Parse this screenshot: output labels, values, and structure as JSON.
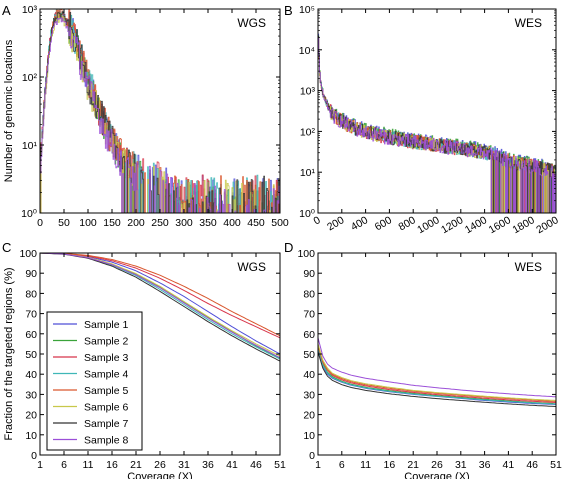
{
  "figure": {
    "colors": [
      "#4f4fd8",
      "#3aa33a",
      "#d8354a",
      "#3fb7b7",
      "#d9572e",
      "#c8c84a",
      "#333333",
      "#9b4fd8"
    ],
    "sample_names": [
      "Sample 1",
      "Sample 2",
      "Sample 3",
      "Sample 4",
      "Sample 5",
      "Sample 6",
      "Sample 7",
      "Sample 8"
    ]
  },
  "chart_data": [
    {
      "panel": "A",
      "label": "WGS",
      "type": "line",
      "ylabel": "Number of genomic locations",
      "xlim": [
        0,
        500
      ],
      "ylim": [
        1,
        1000
      ],
      "yscale": "log",
      "xticks": [
        0,
        50,
        100,
        150,
        200,
        250,
        300,
        350,
        400,
        450,
        500
      ],
      "xtick_labels": [
        "0",
        "50",
        "100",
        "150",
        "200",
        "250",
        "300",
        "350",
        "400",
        "450",
        "500"
      ],
      "yticks": [
        1,
        10,
        100,
        1000
      ],
      "ytick_labels": [
        "10⁰",
        "10¹",
        "10²",
        "10³"
      ],
      "series_shape": {
        "x": [
          0,
          5,
          10,
          15,
          20,
          25,
          30,
          35,
          40,
          45,
          50,
          60,
          70,
          80,
          90,
          100,
          120,
          140,
          160,
          180,
          200,
          250,
          300,
          350,
          400,
          450,
          500
        ],
        "y": [
          5,
          20,
          60,
          150,
          320,
          520,
          700,
          800,
          820,
          790,
          720,
          560,
          380,
          230,
          135,
          80,
          35,
          15,
          8,
          5,
          4,
          3,
          2,
          2,
          2,
          2,
          2
        ]
      },
      "grid": false,
      "legend": "none"
    },
    {
      "panel": "B",
      "label": "WES",
      "type": "line",
      "xlim": [
        0,
        2000
      ],
      "ylim": [
        1,
        100000
      ],
      "yscale": "log",
      "xticks": [
        0,
        200,
        400,
        600,
        800,
        1000,
        1200,
        1400,
        1600,
        1800,
        2000
      ],
      "xtick_labels": [
        "0",
        "200",
        "400",
        "600",
        "800",
        "1000",
        "1200",
        "1400",
        "1600",
        "1800",
        "2000"
      ],
      "yticks": [
        1,
        10,
        100,
        1000,
        10000,
        100000
      ],
      "ytick_labels": [
        "10⁰",
        "10¹",
        "10²",
        "10³",
        "10⁴",
        "10⁵"
      ],
      "series_shape": {
        "x": [
          0,
          5,
          10,
          20,
          40,
          80,
          120,
          200,
          300,
          400,
          600,
          800,
          1000,
          1200,
          1400,
          1500,
          1600,
          1800,
          2000
        ],
        "y": [
          20000,
          8000,
          3000,
          1500,
          800,
          400,
          250,
          170,
          120,
          95,
          70,
          55,
          45,
          38,
          30,
          25,
          18,
          14,
          10
        ]
      },
      "grid": false,
      "legend": "none"
    },
    {
      "panel": "C",
      "label": "WGS",
      "type": "line",
      "ylabel": "Fraction of the targeted regions (%)",
      "xlabel": "Coverage (X)",
      "xlim": [
        1,
        51
      ],
      "ylim": [
        0,
        100
      ],
      "xticks": [
        1,
        6,
        11,
        16,
        21,
        26,
        31,
        36,
        41,
        46,
        51
      ],
      "yticks": [
        0,
        10,
        20,
        30,
        40,
        50,
        60,
        70,
        80,
        90,
        100
      ],
      "x": [
        1,
        6,
        11,
        16,
        21,
        26,
        31,
        36,
        41,
        46,
        51
      ],
      "series": [
        {
          "name": "Sample 1",
          "values": [
            100,
            99.6,
            98.2,
            95.5,
            91.2,
            85.2,
            78.5,
            71,
            63.5,
            56.5,
            50
          ]
        },
        {
          "name": "Sample 2",
          "values": [
            100,
            99.5,
            97.8,
            94.5,
            89.5,
            83,
            75.5,
            68,
            61,
            54,
            48
          ]
        },
        {
          "name": "Sample 3",
          "values": [
            100,
            99.7,
            98.5,
            96.2,
            92.5,
            87.5,
            81.5,
            75,
            69,
            63.5,
            58
          ]
        },
        {
          "name": "Sample 4",
          "values": [
            100,
            99.5,
            97.6,
            94,
            88.8,
            82,
            74.5,
            67,
            60,
            53.5,
            47.5
          ]
        },
        {
          "name": "Sample 5",
          "values": [
            100,
            99.8,
            98.8,
            96.8,
            93.5,
            89,
            83.5,
            77.5,
            71,
            65,
            59
          ]
        },
        {
          "name": "Sample 6",
          "values": [
            100,
            99.5,
            97.9,
            94.6,
            89.8,
            83.5,
            76,
            68.5,
            61.5,
            55,
            49
          ]
        },
        {
          "name": "Sample 7",
          "values": [
            100,
            99.4,
            97.4,
            93.5,
            88,
            81,
            73.5,
            66,
            59,
            52.5,
            46.5
          ]
        },
        {
          "name": "Sample 8",
          "values": [
            100,
            99.5,
            97.7,
            94.2,
            89.2,
            82.8,
            75.3,
            67.8,
            60.8,
            54.3,
            48.2
          ]
        }
      ],
      "grid": false,
      "legend": "lower-left"
    },
    {
      "panel": "D",
      "label": "WES",
      "type": "line",
      "xlabel": "Coverage (X)",
      "xlim": [
        1,
        51
      ],
      "ylim": [
        0,
        100
      ],
      "xticks": [
        1,
        6,
        11,
        16,
        21,
        26,
        31,
        36,
        41,
        46,
        51
      ],
      "yticks": [
        0,
        10,
        20,
        30,
        40,
        50,
        60,
        70,
        80,
        90,
        100
      ],
      "x": [
        1,
        2,
        3,
        4,
        6,
        8,
        11,
        16,
        21,
        26,
        31,
        36,
        41,
        46,
        51
      ],
      "series": [
        {
          "name": "Sample 1",
          "values": [
            52,
            44,
            40,
            38,
            36,
            34.5,
            33,
            31.3,
            30,
            29,
            28,
            27,
            26.2,
            25.5,
            25
          ]
        },
        {
          "name": "Sample 2",
          "values": [
            53,
            45,
            41,
            38.8,
            36.5,
            35,
            33.5,
            31.8,
            30.5,
            29.4,
            28.5,
            27.6,
            26.8,
            26,
            25.4
          ]
        },
        {
          "name": "Sample 3",
          "values": [
            54,
            46,
            42,
            39.5,
            37.2,
            35.7,
            34.2,
            32.4,
            31,
            29.9,
            29,
            28.1,
            27.3,
            26.6,
            26
          ]
        },
        {
          "name": "Sample 4",
          "values": [
            53,
            44.5,
            40.5,
            38.3,
            36.2,
            34.7,
            33.2,
            31.5,
            30.2,
            29.1,
            28.2,
            27.3,
            26.5,
            25.8,
            25.2
          ]
        },
        {
          "name": "Sample 5",
          "values": [
            54,
            46,
            42.2,
            40,
            37.8,
            36.3,
            34.8,
            33,
            31.6,
            30.5,
            29.6,
            28.7,
            27.9,
            27.2,
            26.5
          ]
        },
        {
          "name": "Sample 6",
          "values": [
            55,
            47,
            43,
            40.5,
            38.3,
            36.8,
            35.3,
            33.5,
            32,
            30.9,
            30,
            29.1,
            28.3,
            27.6,
            27
          ]
        },
        {
          "name": "Sample 7",
          "values": [
            51,
            43,
            39,
            37,
            34.8,
            33.4,
            32,
            30.3,
            29,
            27.9,
            27,
            26.1,
            25.3,
            24.6,
            24
          ]
        },
        {
          "name": "Sample 8",
          "values": [
            58,
            49,
            45,
            43,
            41,
            39.5,
            38,
            36.2,
            34.5,
            33.3,
            32.2,
            31.2,
            30.3,
            29.5,
            28.8
          ]
        }
      ],
      "grid": false,
      "legend": "none"
    }
  ]
}
